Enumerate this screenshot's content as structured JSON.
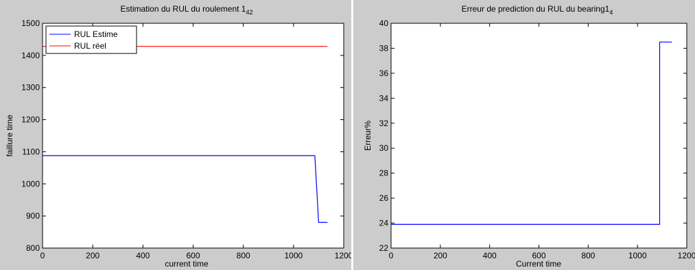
{
  "chart_data": [
    {
      "type": "line",
      "title": "Estimation du RUL du roulement 1",
      "title_subscript": "42",
      "xlabel": "current time",
      "ylabel": "faillure time",
      "xlim": [
        0,
        1200
      ],
      "ylim": [
        800,
        1500
      ],
      "xticks": [
        "0",
        "200",
        "400",
        "600",
        "800",
        "1000",
        "1200"
      ],
      "yticks": [
        "800",
        "900",
        "1000",
        "1100",
        "1200",
        "1300",
        "1400",
        "1500"
      ],
      "grid": false,
      "legend": "top-left",
      "series": [
        {
          "name": "RUL Estime",
          "color": "#0000ff",
          "x": [
            0,
            1085,
            1085,
            1100,
            1100,
            1135
          ],
          "y": [
            1088,
            1088,
            1088,
            880,
            880,
            880
          ]
        },
        {
          "name": "RUL réel",
          "color": "#ff0000",
          "x": [
            0,
            1135
          ],
          "y": [
            1428,
            1428
          ]
        }
      ]
    },
    {
      "type": "line",
      "title": "Erreur de prediction du RUL du bearing1",
      "title_subscript": "4",
      "xlabel": "Current time",
      "ylabel": "Erreur%",
      "xlim": [
        0,
        1200
      ],
      "ylim": [
        22,
        40
      ],
      "xticks": [
        "0",
        "200",
        "400",
        "600",
        "800",
        "1000",
        "1200"
      ],
      "yticks": [
        "22",
        "24",
        "26",
        "28",
        "30",
        "32",
        "34",
        "36",
        "38",
        "40"
      ],
      "grid": false,
      "series": [
        {
          "color": "#0000ff",
          "x": [
            0,
            1090,
            1090,
            1140
          ],
          "y": [
            23.9,
            23.9,
            38.5,
            38.5
          ]
        }
      ]
    }
  ]
}
